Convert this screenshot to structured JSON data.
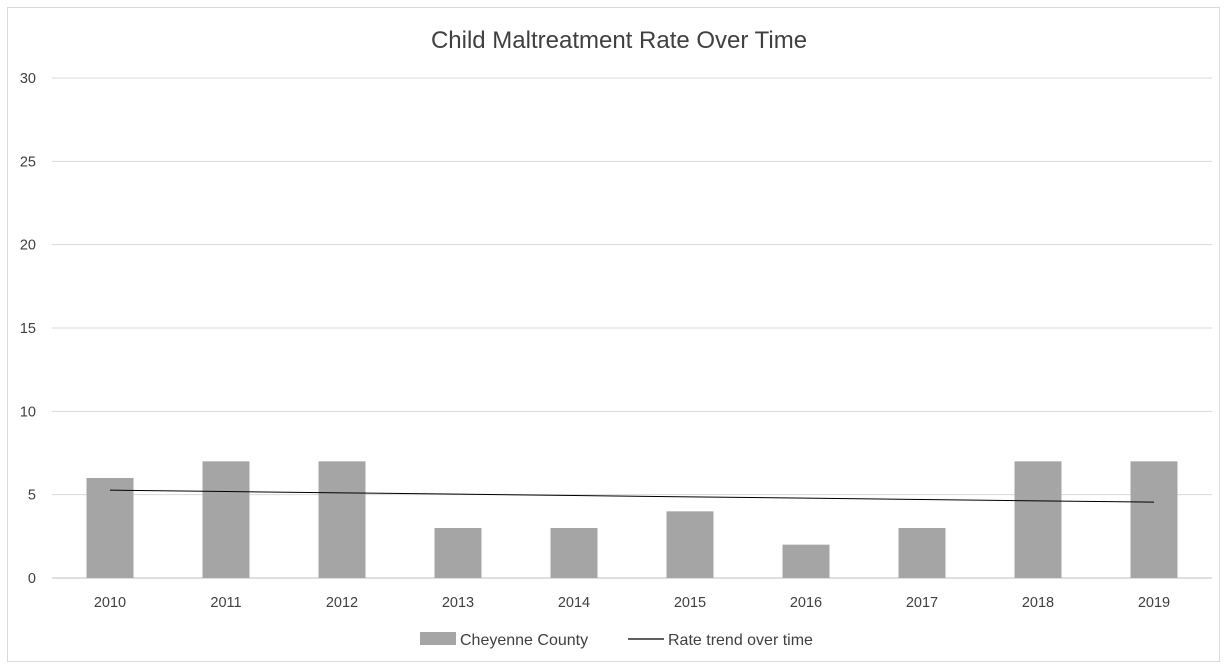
{
  "chart_data": {
    "type": "bar",
    "title": "Child Maltreatment Rate Over Time",
    "xlabel": "",
    "ylabel": "",
    "categories": [
      "2010",
      "2011",
      "2012",
      "2013",
      "2014",
      "2015",
      "2016",
      "2017",
      "2018",
      "2019"
    ],
    "series": [
      {
        "name": "Cheyenne County",
        "type": "bar",
        "color": "#a5a5a5",
        "values": [
          6,
          7,
          7,
          3,
          3,
          4,
          2,
          3,
          7,
          7
        ]
      },
      {
        "name": "Rate trend over time",
        "type": "line",
        "color": "#000000",
        "values": [
          5.27,
          5.19,
          5.11,
          5.03,
          4.95,
          4.87,
          4.79,
          4.71,
          4.63,
          4.55
        ]
      }
    ],
    "ylim": [
      0,
      30
    ],
    "yticks": [
      "0",
      "5",
      "10",
      "15",
      "20",
      "25",
      "30"
    ],
    "grid": true,
    "legend_position": "bottom"
  }
}
